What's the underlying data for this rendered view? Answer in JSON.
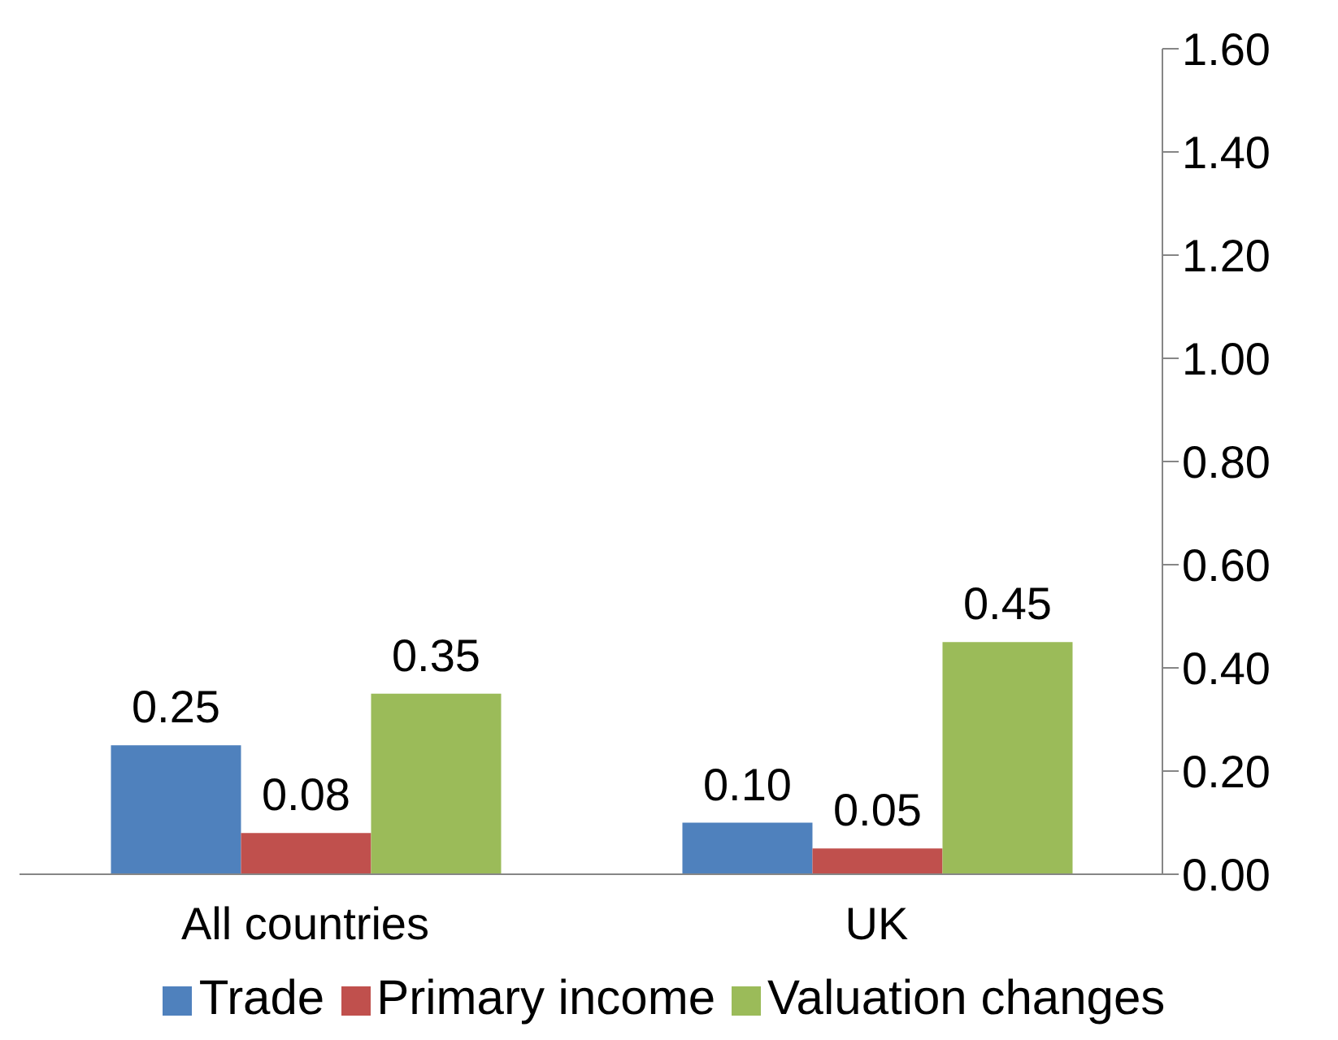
{
  "chart_data": {
    "type": "bar",
    "categories": [
      "All countries",
      "UK"
    ],
    "series": [
      {
        "name": "Trade",
        "color": "#4f81bd",
        "values": [
          0.25,
          0.1
        ],
        "value_labels": [
          "0.25",
          "0.10"
        ]
      },
      {
        "name": "Primary income",
        "color": "#c0504d",
        "values": [
          0.08,
          0.05
        ],
        "value_labels": [
          "0.08",
          "0.05"
        ]
      },
      {
        "name": "Valuation changes",
        "color": "#9bbb59",
        "values": [
          0.35,
          0.45
        ],
        "value_labels": [
          "0.35",
          "0.45"
        ]
      }
    ],
    "ylim": [
      0,
      1.6
    ],
    "yticks": [
      {
        "value": 0,
        "label": "0.00"
      },
      {
        "value": 0.2,
        "label": "0.20"
      },
      {
        "value": 0.4,
        "label": "0.40"
      },
      {
        "value": 0.6,
        "label": "0.60"
      },
      {
        "value": 0.8,
        "label": "0.80"
      },
      {
        "value": 1,
        "label": "1.00"
      },
      {
        "value": 1.2,
        "label": "1.20"
      },
      {
        "value": 1.4,
        "label": "1.40"
      },
      {
        "value": 1.6,
        "label": "1.60"
      }
    ],
    "grid": false,
    "legend": "bottom"
  }
}
